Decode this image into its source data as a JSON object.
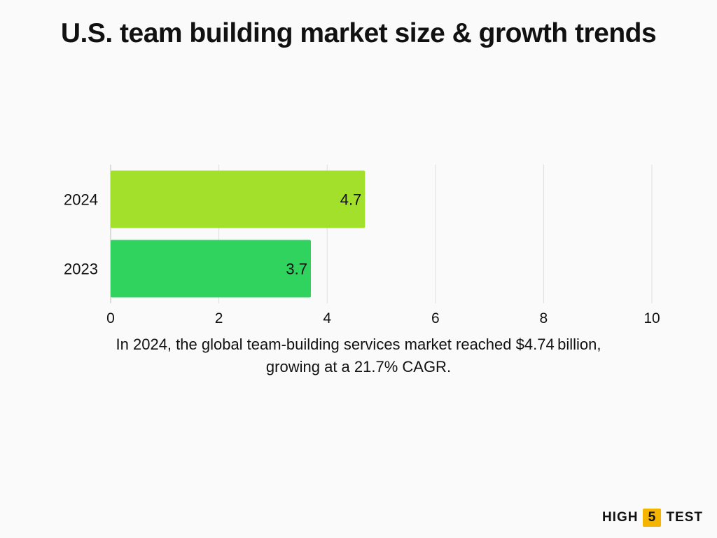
{
  "title": "U.S. team building market size & growth trends",
  "caption": "In 2024, the global team-building services market reached $4.74 billion, growing at a 21.7% CAGR.",
  "logo": {
    "left": "HIGH",
    "mid": "5",
    "right": "TEST"
  },
  "chart_data": {
    "type": "bar",
    "orientation": "horizontal",
    "categories": [
      "2024",
      "2023"
    ],
    "values": [
      4.7,
      3.7
    ],
    "data_labels": [
      "4.7",
      "3.7"
    ],
    "colors": [
      "#a3e02c",
      "#2fd35e"
    ],
    "xlim": [
      0,
      10
    ],
    "xticks": [
      0,
      2,
      4,
      6,
      8,
      10
    ],
    "grid": true,
    "legend": "none"
  }
}
